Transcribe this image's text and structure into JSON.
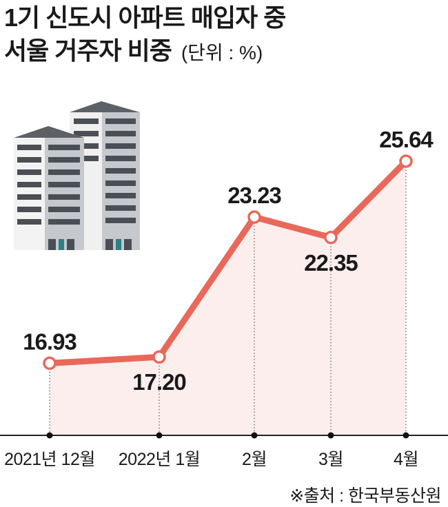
{
  "header": {
    "title_line1": "1기 신도시 아파트 매입자 중",
    "title_line2": "서울 거주자 비중",
    "unit": "(단위 : %)"
  },
  "source": "※출처 : 한국부동산원",
  "icon": "apartment-buildings-icon",
  "colors": {
    "line": "#e8685a",
    "area": "#fdeeee",
    "axis": "#222222"
  },
  "chart_data": {
    "type": "line",
    "title": "1기 신도시 아파트 매입자 중 서울 거주자 비중",
    "unit": "%",
    "categories": [
      "2021년 12월",
      "2022년 1월",
      "2월",
      "3월",
      "4월"
    ],
    "values": [
      16.93,
      17.2,
      23.23,
      22.35,
      25.64
    ],
    "value_labels": [
      "16.93",
      "17.20",
      "23.23",
      "22.35",
      "25.64"
    ],
    "ylim": [
      13.82,
      25.64
    ],
    "grid": false,
    "legend": "none"
  }
}
